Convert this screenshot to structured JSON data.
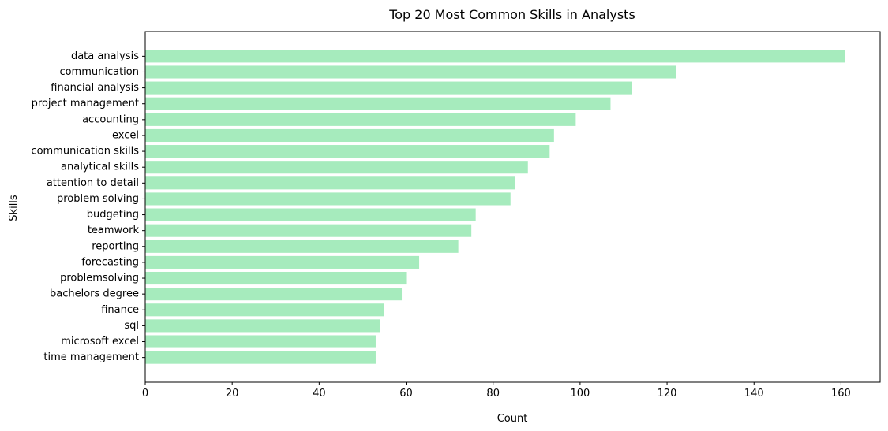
{
  "chart_data": {
    "type": "bar",
    "orientation": "horizontal",
    "title": "Top 20 Most Common Skills in Analysts",
    "xlabel": "Count",
    "ylabel": "Skills",
    "xlim": [
      0,
      169
    ],
    "xticks": [
      0,
      20,
      40,
      60,
      80,
      100,
      120,
      140,
      160
    ],
    "grid": false,
    "bar_color": "#a6ebbd",
    "categories": [
      "data analysis",
      "communication",
      "financial analysis",
      "project management",
      "accounting",
      "excel",
      "communication skills",
      "analytical skills",
      "attention to detail",
      "problem solving",
      "budgeting",
      "teamwork",
      "reporting",
      "forecasting",
      "problemsolving",
      "bachelors degree",
      "finance",
      "sql",
      "microsoft excel",
      "time management"
    ],
    "values": [
      161,
      122,
      112,
      107,
      99,
      94,
      93,
      88,
      85,
      84,
      76,
      75,
      72,
      63,
      60,
      59,
      55,
      54,
      53,
      53
    ]
  }
}
